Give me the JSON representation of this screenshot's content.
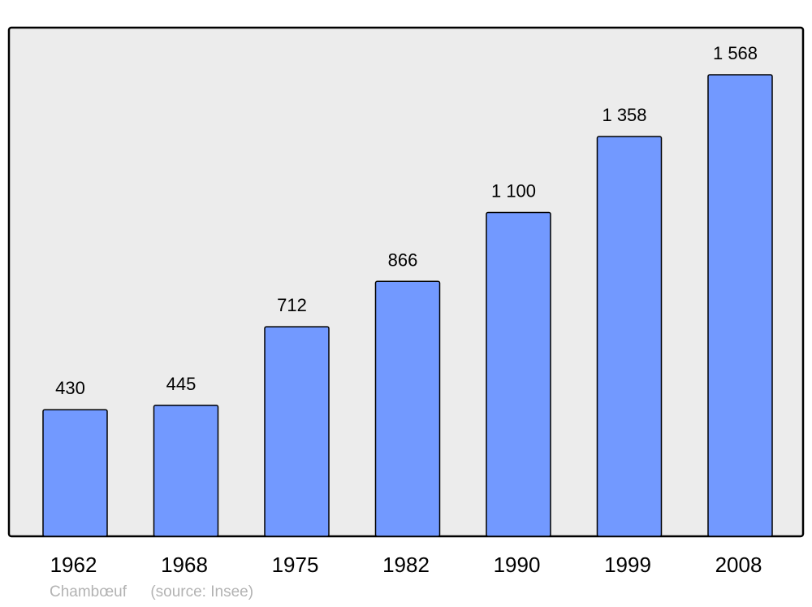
{
  "chart_data": {
    "type": "bar",
    "categories": [
      "1962",
      "1968",
      "1975",
      "1982",
      "1990",
      "1999",
      "2008"
    ],
    "values": [
      430,
      445,
      712,
      866,
      1100,
      1358,
      1568
    ],
    "value_labels": [
      "430",
      "445",
      "712",
      "866",
      "1 100",
      "1 358",
      "1 568"
    ],
    "title": "",
    "xlabel": "",
    "ylabel": "",
    "ylim": [
      0,
      1728
    ],
    "grid": false,
    "colors": {
      "bar": "#7299ff",
      "background": "#ececec",
      "border": "#000000",
      "footer_text": "#b3b3b3"
    }
  },
  "footer": {
    "place": "Chambœuf",
    "source": "(source: Insee)"
  }
}
